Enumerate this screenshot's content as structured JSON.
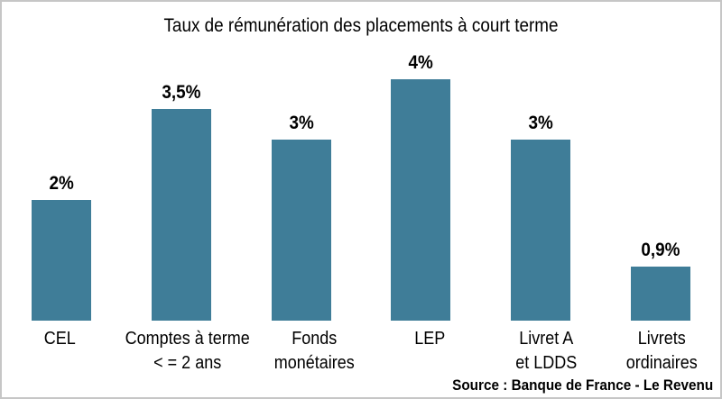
{
  "frame": {
    "background": "#ffffff",
    "border_color": "#c6c6c6"
  },
  "chart_data": {
    "type": "bar",
    "title": "Taux de rémunération des placements à court terme",
    "categories": [
      "CEL",
      "Comptes à terme\n< = 2 ans",
      "Fonds\nmonétaires",
      "LEP",
      "Livret A\net LDDS",
      "Livrets\nordinaires"
    ],
    "values": [
      2,
      3.5,
      3,
      4,
      3,
      0.9
    ],
    "value_labels": [
      "2%",
      "3,5%",
      "3%",
      "4%",
      "3%",
      "0,9%"
    ],
    "bar_color": "#3f7d98",
    "text_color": "#000000",
    "ylim": [
      0,
      4.4
    ],
    "grid": false,
    "legend": "none",
    "source": "Source : Banque de France - Le Revenu"
  }
}
